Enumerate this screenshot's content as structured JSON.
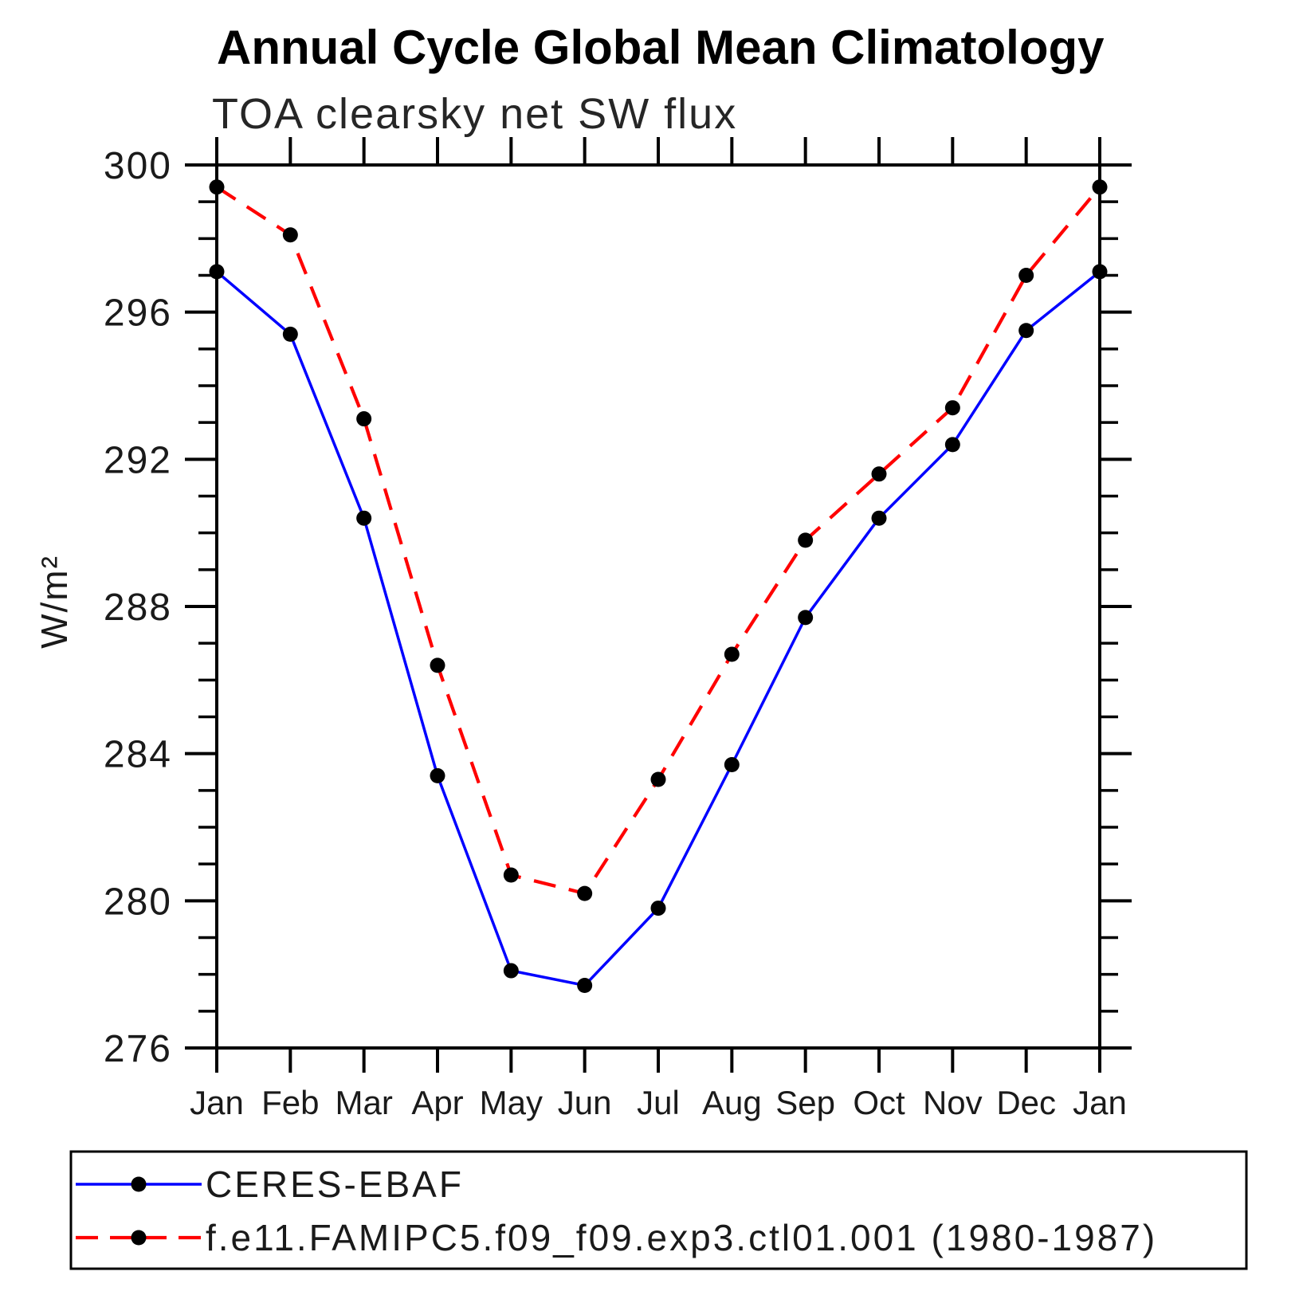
{
  "title": "Annual Cycle Global Mean Climatology",
  "subtitle": "TOA clearsky net SW flux",
  "chart_data": {
    "type": "line",
    "title": "Annual Cycle Global Mean Climatology",
    "subtitle": "TOA clearsky net SW flux",
    "xlabel": "",
    "ylabel": "W/m²",
    "x_categories": [
      "Jan",
      "Feb",
      "Mar",
      "Apr",
      "May",
      "Jun",
      "Jul",
      "Aug",
      "Sep",
      "Oct",
      "Nov",
      "Dec",
      "Jan"
    ],
    "ylim": [
      276,
      300
    ],
    "ytick_major": [
      276,
      280,
      284,
      288,
      292,
      296,
      300
    ],
    "ytick_minor_interval": 1,
    "grid": false,
    "legend_position": "bottom",
    "frame_color": "#000000",
    "series": [
      {
        "name": "CERES-EBAF",
        "color": "#0000ff",
        "line_style": "solid",
        "marker": "circle",
        "marker_color": "#000000",
        "values": [
          297.1,
          295.4,
          290.4,
          283.4,
          278.1,
          277.7,
          279.8,
          283.7,
          287.7,
          290.4,
          292.4,
          295.5,
          297.1
        ]
      },
      {
        "name": "f.e11.FAMIPC5.f09_f09.exp3.ctl01.001 (1980-1987)",
        "color": "#ff0000",
        "line_style": "dashed",
        "marker": "circle",
        "marker_color": "#000000",
        "values": [
          299.4,
          298.1,
          293.1,
          286.4,
          280.7,
          280.2,
          283.3,
          286.7,
          289.8,
          291.6,
          293.4,
          297.0,
          299.4
        ]
      }
    ]
  }
}
